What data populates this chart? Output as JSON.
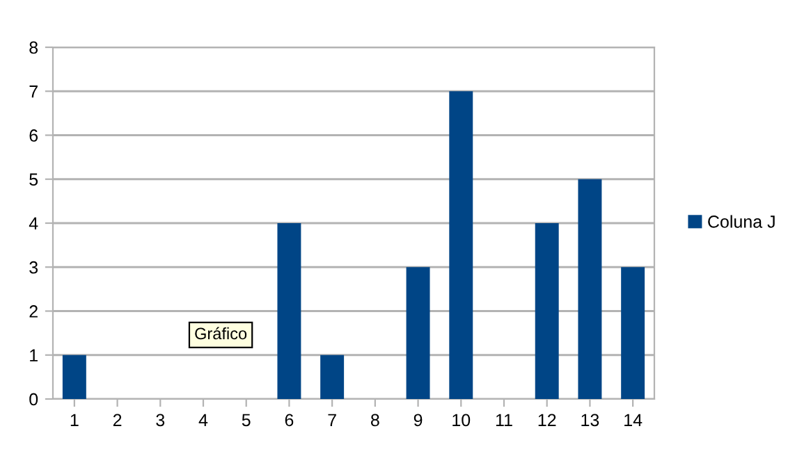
{
  "chart_data": {
    "type": "bar",
    "categories": [
      "1",
      "2",
      "3",
      "4",
      "5",
      "6",
      "7",
      "8",
      "9",
      "10",
      "11",
      "12",
      "13",
      "14"
    ],
    "series": [
      {
        "name": "Coluna J",
        "color": "#004586",
        "values": [
          1,
          0,
          0,
          0,
          0,
          4,
          1,
          0,
          3,
          7,
          0,
          4,
          5,
          3
        ]
      }
    ],
    "ylim": [
      0,
      8
    ],
    "yticks": [
      0,
      1,
      2,
      3,
      4,
      5,
      6,
      7,
      8
    ],
    "grid": "y",
    "legend": "right",
    "annotations": [
      "Gráfico"
    ]
  }
}
